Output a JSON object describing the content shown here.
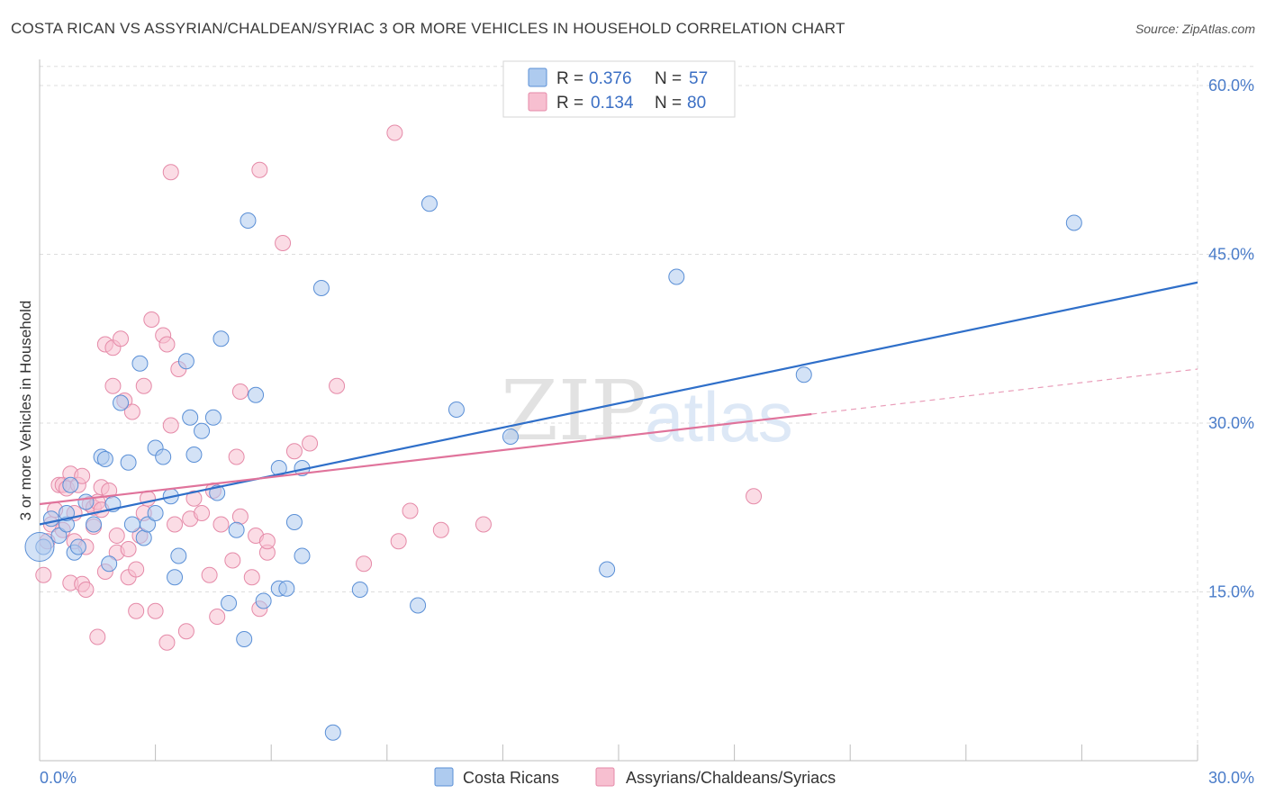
{
  "title": "COSTA RICAN VS ASSYRIAN/CHALDEAN/SYRIAC 3 OR MORE VEHICLES IN HOUSEHOLD CORRELATION CHART",
  "source": "Source: ZipAtlas.com",
  "watermark": {
    "zip": "ZIP",
    "atlas": "atlas"
  },
  "colors": {
    "blue_fill": "#aecbef",
    "blue_stroke": "#5a8fd6",
    "blue_line": "#2f6fc9",
    "pink_fill": "#f7bfd0",
    "pink_stroke": "#e58aa8",
    "pink_line": "#e0739b",
    "tick_text": "#4a7cc9",
    "grid": "#dddddd"
  },
  "legend": {
    "row1": {
      "r_label": "R =",
      "r_value": "0.376",
      "n_label": "N =",
      "n_value": "57"
    },
    "row2": {
      "r_label": "R =",
      "r_value": "0.134",
      "n_label": "N =",
      "n_value": "80"
    }
  },
  "chart_data": {
    "type": "scatter",
    "title": "COSTA RICAN VS ASSYRIAN/CHALDEAN/SYRIAC 3 OR MORE VEHICLES IN HOUSEHOLD CORRELATION CHART",
    "xlabel": "",
    "ylabel": "3 or more Vehicles in Household",
    "xlim": [
      0,
      30
    ],
    "ylim": [
      0,
      62
    ],
    "x_tick_labels": [
      "0.0%",
      "30.0%"
    ],
    "y_ticks": [
      15,
      30,
      45,
      60
    ],
    "y_tick_labels": [
      "15.0%",
      "30.0%",
      "45.0%",
      "60.0%"
    ],
    "grid": true,
    "legend_position": "top-center",
    "series": [
      {
        "name": "Costa Ricans",
        "color": "#aecbef",
        "trend": {
          "x": [
            0,
            30
          ],
          "y": [
            21.0,
            42.5
          ],
          "dashed_extension": false
        },
        "points": [
          [
            0.1,
            19.0
          ],
          [
            0.3,
            21.5
          ],
          [
            0.5,
            20.0
          ],
          [
            0.7,
            21.0
          ],
          [
            0.7,
            22.0
          ],
          [
            0.8,
            24.5
          ],
          [
            0.9,
            18.5
          ],
          [
            1.0,
            19.0
          ],
          [
            1.2,
            23.0
          ],
          [
            1.4,
            21.0
          ],
          [
            1.6,
            27.0
          ],
          [
            1.7,
            26.8
          ],
          [
            1.8,
            17.5
          ],
          [
            1.9,
            22.8
          ],
          [
            2.1,
            31.8
          ],
          [
            2.3,
            26.5
          ],
          [
            2.4,
            21.0
          ],
          [
            2.6,
            35.3
          ],
          [
            2.7,
            19.8
          ],
          [
            2.8,
            21.0
          ],
          [
            3.0,
            22.0
          ],
          [
            3.0,
            27.8
          ],
          [
            3.2,
            27.0
          ],
          [
            3.4,
            23.5
          ],
          [
            3.5,
            16.3
          ],
          [
            3.6,
            18.2
          ],
          [
            3.8,
            35.5
          ],
          [
            3.9,
            30.5
          ],
          [
            4.0,
            27.2
          ],
          [
            4.2,
            29.3
          ],
          [
            4.5,
            30.5
          ],
          [
            4.6,
            23.8
          ],
          [
            4.7,
            37.5
          ],
          [
            4.9,
            14.0
          ],
          [
            5.1,
            20.5
          ],
          [
            5.3,
            10.8
          ],
          [
            5.4,
            48.0
          ],
          [
            5.6,
            32.5
          ],
          [
            5.8,
            14.2
          ],
          [
            6.2,
            26.0
          ],
          [
            6.2,
            15.3
          ],
          [
            6.4,
            15.3
          ],
          [
            6.6,
            21.2
          ],
          [
            6.8,
            18.2
          ],
          [
            6.8,
            26.0
          ],
          [
            7.3,
            42.0
          ],
          [
            7.6,
            2.5
          ],
          [
            8.3,
            15.2
          ],
          [
            9.8,
            13.8
          ],
          [
            10.1,
            49.5
          ],
          [
            10.8,
            31.2
          ],
          [
            12.2,
            28.8
          ],
          [
            14.7,
            17.0
          ],
          [
            16.5,
            43.0
          ],
          [
            19.8,
            34.3
          ],
          [
            26.8,
            47.8
          ],
          [
            0.0,
            19.0
          ]
        ]
      },
      {
        "name": "Assyrians/Chaldeans/Syriacs",
        "color": "#f7bfd0",
        "trend": {
          "x": [
            0,
            20.0
          ],
          "y": [
            22.8,
            30.8
          ],
          "dashed_extension": true,
          "dashed_x": [
            20.0,
            30
          ],
          "dashed_y": [
            30.8,
            34.8
          ]
        },
        "points": [
          [
            0.1,
            16.5
          ],
          [
            0.2,
            19.5
          ],
          [
            0.3,
            21.0
          ],
          [
            0.4,
            22.3
          ],
          [
            0.5,
            24.5
          ],
          [
            0.6,
            20.5
          ],
          [
            0.6,
            24.5
          ],
          [
            0.7,
            24.2
          ],
          [
            0.8,
            25.5
          ],
          [
            0.9,
            19.5
          ],
          [
            0.9,
            22.0
          ],
          [
            0.8,
            15.8
          ],
          [
            1.0,
            24.5
          ],
          [
            1.1,
            25.3
          ],
          [
            1.1,
            15.7
          ],
          [
            1.2,
            15.2
          ],
          [
            1.2,
            19.0
          ],
          [
            1.3,
            22.8
          ],
          [
            1.4,
            22.5
          ],
          [
            1.4,
            20.8
          ],
          [
            1.5,
            23.0
          ],
          [
            1.5,
            11.0
          ],
          [
            1.6,
            22.3
          ],
          [
            1.6,
            24.3
          ],
          [
            1.7,
            37.0
          ],
          [
            1.7,
            16.8
          ],
          [
            1.8,
            24.0
          ],
          [
            1.9,
            33.3
          ],
          [
            1.9,
            36.7
          ],
          [
            2.0,
            18.5
          ],
          [
            2.0,
            20.0
          ],
          [
            2.1,
            37.5
          ],
          [
            2.2,
            32.0
          ],
          [
            2.3,
            18.8
          ],
          [
            2.3,
            16.3
          ],
          [
            2.4,
            31.0
          ],
          [
            2.5,
            13.3
          ],
          [
            2.5,
            17.0
          ],
          [
            2.6,
            20.0
          ],
          [
            2.7,
            33.3
          ],
          [
            2.7,
            22.0
          ],
          [
            2.8,
            23.3
          ],
          [
            2.9,
            39.2
          ],
          [
            3.0,
            13.3
          ],
          [
            3.2,
            37.8
          ],
          [
            3.3,
            37.0
          ],
          [
            3.3,
            10.5
          ],
          [
            3.4,
            29.8
          ],
          [
            3.4,
            52.3
          ],
          [
            3.5,
            21.0
          ],
          [
            3.6,
            34.8
          ],
          [
            3.8,
            11.5
          ],
          [
            3.9,
            21.5
          ],
          [
            4.0,
            23.3
          ],
          [
            4.2,
            22.0
          ],
          [
            4.4,
            16.5
          ],
          [
            4.5,
            24.0
          ],
          [
            4.6,
            12.8
          ],
          [
            4.7,
            21.0
          ],
          [
            5.0,
            17.8
          ],
          [
            5.1,
            27.0
          ],
          [
            5.2,
            21.7
          ],
          [
            5.2,
            32.8
          ],
          [
            5.5,
            16.3
          ],
          [
            5.6,
            20.0
          ],
          [
            5.7,
            52.5
          ],
          [
            5.7,
            13.5
          ],
          [
            5.9,
            18.5
          ],
          [
            5.9,
            19.5
          ],
          [
            6.3,
            46.0
          ],
          [
            6.6,
            27.5
          ],
          [
            7.0,
            28.2
          ],
          [
            7.7,
            33.3
          ],
          [
            8.4,
            17.5
          ],
          [
            9.3,
            19.5
          ],
          [
            9.6,
            22.2
          ],
          [
            10.4,
            20.5
          ],
          [
            11.5,
            21.0
          ],
          [
            9.2,
            55.8
          ],
          [
            18.5,
            23.5
          ]
        ]
      }
    ]
  }
}
